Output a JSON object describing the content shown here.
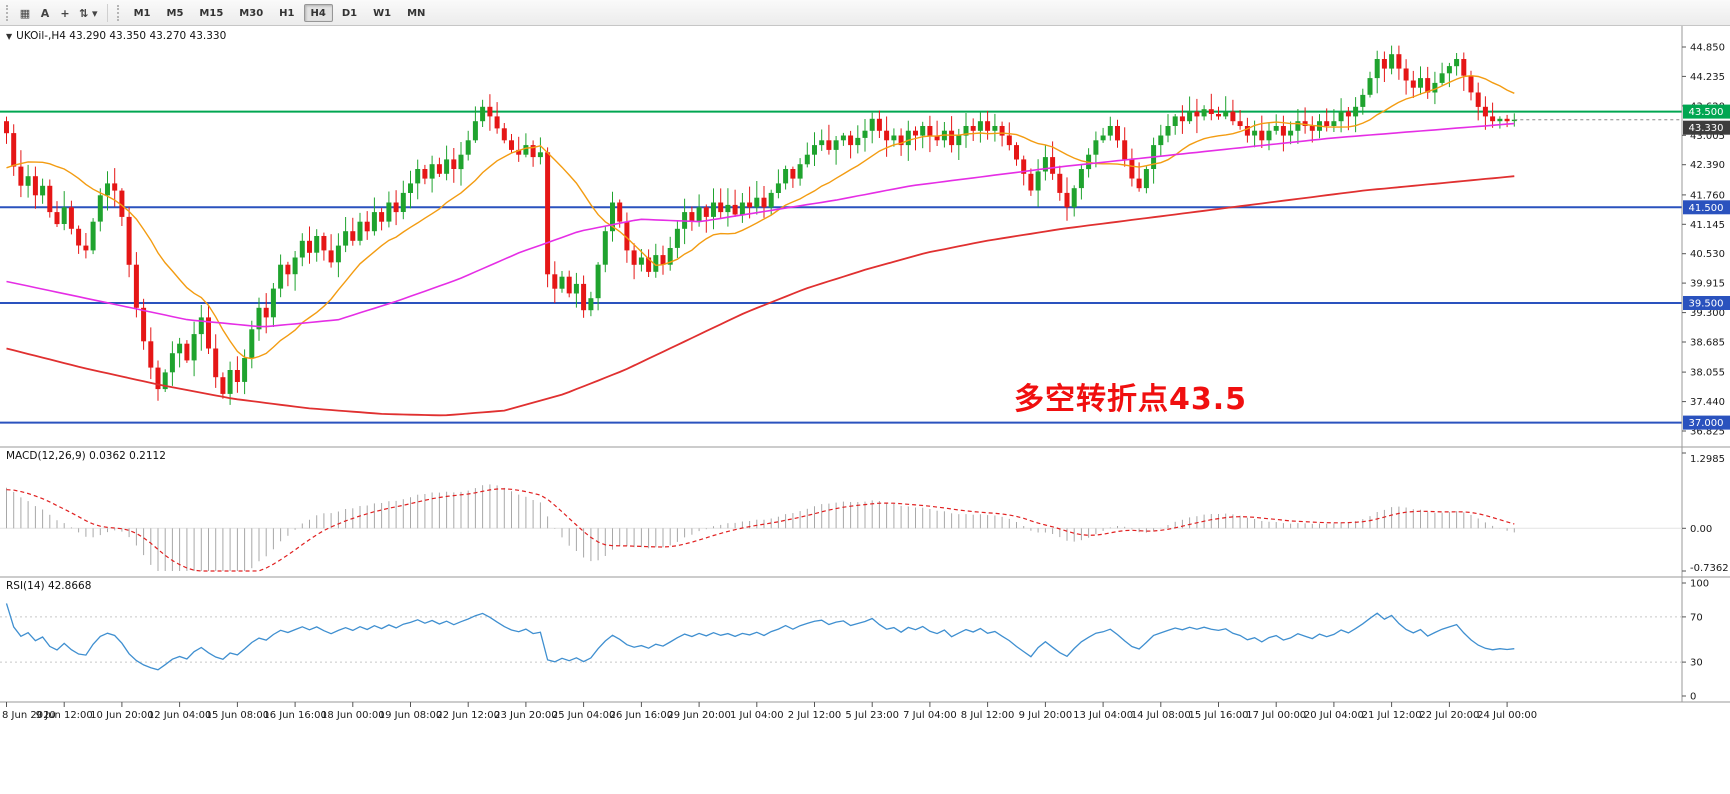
{
  "toolbar": {
    "tools": [
      {
        "name": "chart-window-icon",
        "glyph": "▦"
      },
      {
        "name": "text-annotation-icon",
        "glyph": "A"
      },
      {
        "name": "crosshair-icon",
        "glyph": "+"
      },
      {
        "name": "objects-dropdown-icon",
        "glyph": "⇅ ▾"
      }
    ],
    "timeframes": [
      {
        "label": "M1",
        "active": false
      },
      {
        "label": "M5",
        "active": false
      },
      {
        "label": "M15",
        "active": false
      },
      {
        "label": "M30",
        "active": false
      },
      {
        "label": "H1",
        "active": false
      },
      {
        "label": "H4",
        "active": true
      },
      {
        "label": "D1",
        "active": false
      },
      {
        "label": "W1",
        "active": false
      },
      {
        "label": "MN",
        "active": false
      }
    ]
  },
  "main_chart": {
    "collapse_icon": "▼",
    "header": "UKOil-,H4  43.290 43.350 43.270 43.330",
    "annotation": "多空转折点43.5",
    "annotation_color": "#f00f0f",
    "price_axis_labels": [
      "44.850",
      "44.235",
      "43.620",
      "43.005",
      "42.390",
      "41.760",
      "41.145",
      "40.530",
      "39.915",
      "39.300",
      "38.685",
      "38.055",
      "37.440",
      "36.825"
    ],
    "hlines": [
      {
        "price": 43.5,
        "label": "43.500",
        "color": "#00a651"
      },
      {
        "price": 41.5,
        "label": "41.500",
        "color": "#2a52be"
      },
      {
        "price": 39.5,
        "label": "39.500",
        "color": "#2a52be"
      },
      {
        "price": 37.0,
        "label": "37.000",
        "color": "#2a52be"
      }
    ],
    "current_price": {
      "value": 43.33,
      "label": "43.330",
      "tag_color": "#3d3d3d"
    },
    "time_axis_labels": [
      "8 Jun 2020",
      "9 Jun 12:00",
      "10 Jun 20:00",
      "12 Jun 04:00",
      "15 Jun 08:00",
      "16 Jun 16:00",
      "18 Jun 00:00",
      "19 Jun 08:00",
      "22 Jun 12:00",
      "23 Jun 20:00",
      "25 Jun 04:00",
      "26 Jun 16:00",
      "29 Jun 20:00",
      "1 Jul 04:00",
      "2 Jul 12:00",
      "5 Jul 23:00",
      "7 Jul 04:00",
      "8 Jul 12:00",
      "9 Jul 20:00",
      "13 Jul 04:00",
      "14 Jul 08:00",
      "15 Jul 16:00",
      "17 Jul 00:00",
      "20 Jul 04:00",
      "21 Jul 12:00",
      "22 Jul 20:00",
      "24 Jul 00:00"
    ]
  },
  "macd": {
    "title": "MACD(12,26,9) 0.0362 0.2112",
    "axis_labels": [
      "1.2985",
      "0.00",
      "-0.7362"
    ],
    "range": {
      "max": 1.2985,
      "min": -0.7362
    },
    "histogram_color": "#a8a8a8",
    "signal_color": "#e02020"
  },
  "rsi": {
    "title": "RSI(14) 42.8668",
    "axis_labels": [
      "100",
      "70",
      "30",
      "0"
    ],
    "levels": [
      70,
      30
    ],
    "line_color": "#3f8fd0"
  },
  "chart_data": {
    "type": "candlestick",
    "symbol": "UKOil-",
    "timeframe": "H4",
    "ohlc_current": {
      "open": 43.29,
      "high": 43.35,
      "low": 43.27,
      "close": 43.33
    },
    "price_range": {
      "max": 44.85,
      "min": 36.825
    },
    "first_open": 43.3,
    "closes": [
      43.05,
      42.35,
      41.95,
      42.15,
      41.75,
      41.95,
      41.4,
      41.15,
      41.5,
      41.05,
      40.7,
      40.6,
      41.2,
      41.75,
      42.0,
      41.85,
      41.3,
      40.3,
      39.4,
      38.7,
      38.15,
      37.7,
      38.05,
      38.45,
      38.65,
      38.3,
      38.85,
      39.2,
      38.55,
      37.95,
      37.6,
      38.1,
      37.85,
      38.35,
      38.95,
      39.4,
      39.2,
      39.8,
      40.3,
      40.1,
      40.45,
      40.8,
      40.55,
      40.9,
      40.6,
      40.35,
      40.7,
      41.0,
      40.8,
      41.2,
      41.0,
      41.4,
      41.2,
      41.6,
      41.4,
      41.8,
      42.0,
      42.3,
      42.1,
      42.4,
      42.2,
      42.5,
      42.3,
      42.6,
      42.9,
      43.3,
      43.6,
      43.4,
      43.15,
      42.9,
      42.7,
      42.6,
      42.8,
      42.55,
      42.65,
      40.1,
      39.8,
      40.05,
      39.7,
      39.9,
      39.35,
      39.6,
      40.3,
      41.0,
      41.6,
      41.2,
      40.6,
      40.3,
      40.45,
      40.15,
      40.5,
      40.3,
      40.65,
      41.05,
      41.4,
      41.2,
      41.5,
      41.3,
      41.6,
      41.4,
      41.55,
      41.35,
      41.6,
      41.5,
      41.7,
      41.5,
      41.8,
      42.0,
      42.3,
      42.1,
      42.4,
      42.6,
      42.8,
      42.9,
      42.7,
      42.9,
      43.0,
      42.8,
      42.95,
      43.1,
      43.35,
      43.1,
      42.9,
      43.0,
      42.8,
      43.1,
      43.0,
      43.2,
      43.0,
      42.9,
      43.1,
      42.8,
      43.0,
      43.2,
      43.1,
      43.3,
      43.1,
      43.2,
      43.0,
      42.8,
      42.5,
      42.2,
      41.85,
      42.25,
      42.55,
      42.2,
      41.8,
      41.5,
      41.9,
      42.3,
      42.6,
      42.9,
      43.0,
      43.2,
      42.9,
      42.5,
      42.1,
      41.9,
      42.3,
      42.8,
      43.0,
      43.2,
      43.4,
      43.3,
      43.5,
      43.4,
      43.55,
      43.45,
      43.4,
      43.5,
      43.3,
      43.2,
      43.0,
      43.1,
      42.9,
      43.1,
      43.2,
      43.0,
      43.1,
      43.3,
      43.2,
      43.1,
      43.3,
      43.2,
      43.3,
      43.5,
      43.4,
      43.6,
      43.85,
      44.2,
      44.6,
      44.4,
      44.7,
      44.4,
      44.15,
      44.0,
      44.2,
      43.9,
      44.1,
      44.3,
      44.45,
      44.6,
      44.25,
      43.9,
      43.6,
      43.4,
      43.3,
      43.35,
      43.3,
      43.33
    ],
    "warmup_closes": [
      38.6,
      38.8,
      39.0,
      39.2,
      39.1,
      39.4,
      39.6,
      39.8,
      40.0,
      40.2,
      40.1,
      40.4,
      40.3,
      40.6,
      40.5,
      40.8,
      40.7,
      40.9,
      41.0,
      41.2,
      41.1,
      41.0,
      41.2,
      41.4,
      41.3,
      41.5,
      41.4,
      41.6,
      41.8,
      42.0,
      41.9,
      42.1,
      42.3,
      42.5,
      42.4,
      42.6,
      42.8,
      43.0,
      43.1,
      43.15
    ],
    "ma_fast": {
      "color": "#f39c12",
      "period": 16
    },
    "ma_medium": {
      "color": "#e52ee5",
      "points": [
        [
          0,
          39.95
        ],
        [
          0.06,
          39.55
        ],
        [
          0.12,
          39.15
        ],
        [
          0.17,
          39.0
        ],
        [
          0.22,
          39.15
        ],
        [
          0.26,
          39.55
        ],
        [
          0.3,
          40.0
        ],
        [
          0.34,
          40.55
        ],
        [
          0.38,
          41.0
        ],
        [
          0.42,
          41.25
        ],
        [
          0.46,
          41.2
        ],
        [
          0.5,
          41.4
        ],
        [
          0.55,
          41.65
        ],
        [
          0.6,
          41.95
        ],
        [
          0.65,
          42.15
        ],
        [
          0.7,
          42.35
        ],
        [
          0.76,
          42.55
        ],
        [
          0.82,
          42.75
        ],
        [
          0.88,
          42.95
        ],
        [
          0.94,
          43.1
        ],
        [
          1.0,
          43.25
        ]
      ]
    },
    "ma_slow": {
      "color": "#e03030",
      "points": [
        [
          0,
          38.55
        ],
        [
          0.05,
          38.15
        ],
        [
          0.1,
          37.8
        ],
        [
          0.15,
          37.5
        ],
        [
          0.2,
          37.3
        ],
        [
          0.25,
          37.18
        ],
        [
          0.29,
          37.15
        ],
        [
          0.33,
          37.25
        ],
        [
          0.37,
          37.6
        ],
        [
          0.41,
          38.1
        ],
        [
          0.45,
          38.7
        ],
        [
          0.49,
          39.3
        ],
        [
          0.53,
          39.8
        ],
        [
          0.57,
          40.2
        ],
        [
          0.61,
          40.55
        ],
        [
          0.65,
          40.8
        ],
        [
          0.7,
          41.05
        ],
        [
          0.75,
          41.25
        ],
        [
          0.8,
          41.45
        ],
        [
          0.85,
          41.65
        ],
        [
          0.9,
          41.85
        ],
        [
          0.95,
          42.0
        ],
        [
          1.0,
          42.15
        ]
      ]
    }
  },
  "colors": {
    "background": "#ffffff",
    "candle_up": "#1fa32e",
    "candle_down": "#e51616",
    "panel_border": "#9a9a9a",
    "axis_text": "#1a1a1a"
  }
}
